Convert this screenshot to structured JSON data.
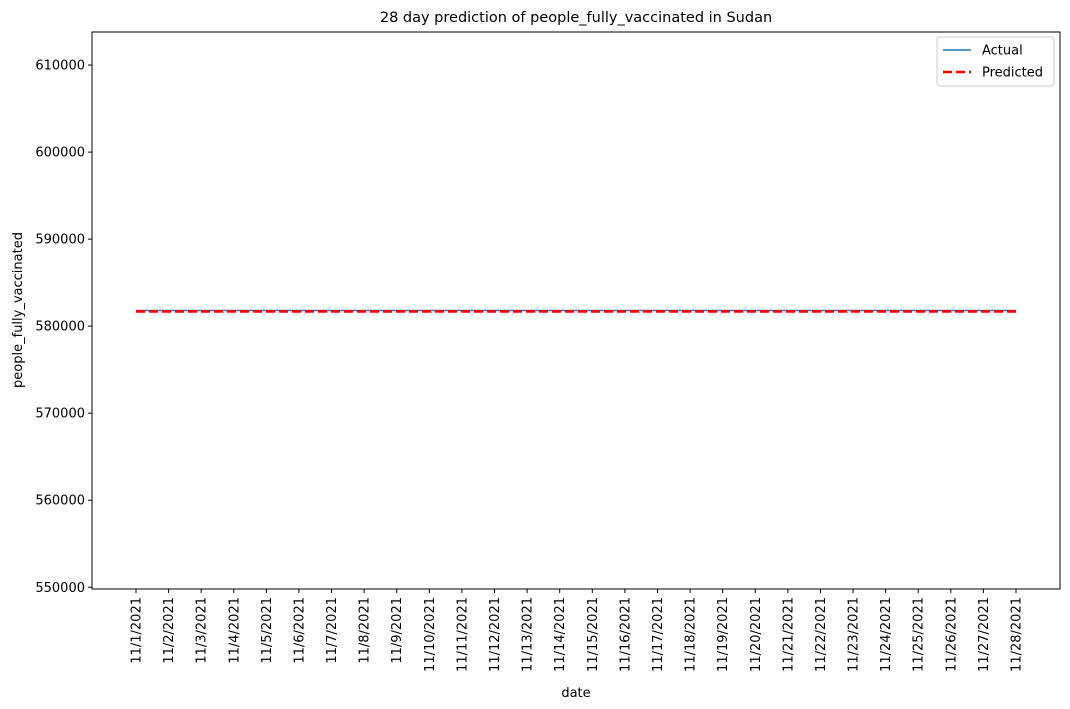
{
  "chart_data": {
    "type": "line",
    "title": "28 day prediction of people_fully_vaccinated in Sudan",
    "xlabel": "date",
    "ylabel": "people_fully_vaccinated",
    "categories": [
      "11/1/2021",
      "11/2/2021",
      "11/3/2021",
      "11/4/2021",
      "11/5/2021",
      "11/6/2021",
      "11/7/2021",
      "11/8/2021",
      "11/9/2021",
      "11/10/2021",
      "11/11/2021",
      "11/12/2021",
      "11/13/2021",
      "11/14/2021",
      "11/15/2021",
      "11/16/2021",
      "11/17/2021",
      "11/18/2021",
      "11/19/2021",
      "11/20/2021",
      "11/21/2021",
      "11/22/2021",
      "11/23/2021",
      "11/24/2021",
      "11/25/2021",
      "11/26/2021",
      "11/27/2021",
      "11/28/2021"
    ],
    "yticks": [
      550000,
      560000,
      570000,
      580000,
      590000,
      600000,
      610000
    ],
    "ylim": [
      549800,
      613800
    ],
    "grid": false,
    "legend_position": "top-right",
    "series": [
      {
        "name": "Actual",
        "color": "#1f77b4",
        "style": "solid",
        "values": [
          581800,
          581800,
          581800,
          581800,
          581800,
          581800,
          581800,
          581800,
          581800,
          581800,
          581800,
          581800,
          581800,
          581800,
          581800,
          581800,
          581800,
          581800,
          581800,
          581800,
          581800,
          581800,
          581800,
          581800,
          581800,
          581800,
          581800,
          581800
        ]
      },
      {
        "name": "Predicted",
        "color": "#ff0000",
        "style": "dashed",
        "values": [
          581700,
          581700,
          581700,
          581700,
          581700,
          581700,
          581700,
          581700,
          581700,
          581700,
          581700,
          581700,
          581700,
          581700,
          581700,
          581700,
          581700,
          581700,
          581700,
          581700,
          581700,
          581700,
          581700,
          581700,
          581700,
          581700,
          581700,
          581700
        ]
      }
    ]
  }
}
